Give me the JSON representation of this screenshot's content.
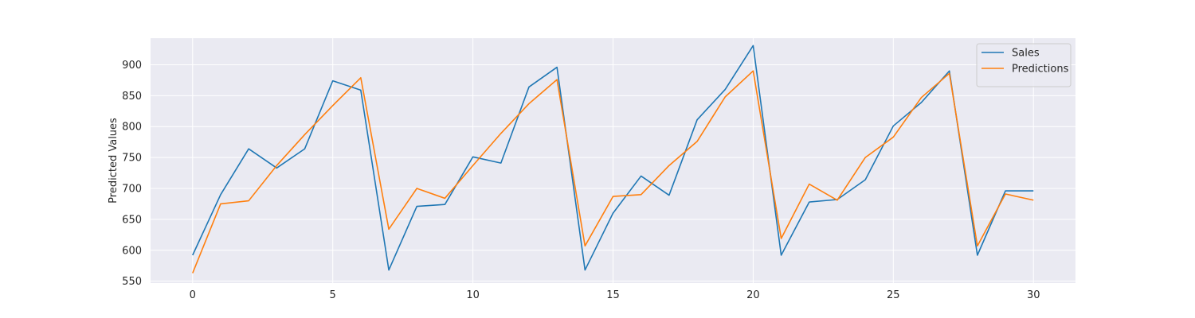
{
  "chart_data": {
    "type": "line",
    "title": "",
    "xlabel": "",
    "ylabel": "Predicted Values",
    "xlim": [
      -1.5,
      31.5
    ],
    "ylim": [
      547,
      943
    ],
    "xticks": [
      0,
      5,
      10,
      15,
      20,
      25,
      30
    ],
    "yticks": [
      550,
      600,
      650,
      700,
      750,
      800,
      850,
      900
    ],
    "grid": true,
    "legend_position": "top-right",
    "x": [
      0,
      1,
      2,
      3,
      4,
      5,
      6,
      7,
      8,
      9,
      10,
      11,
      12,
      13,
      14,
      15,
      16,
      17,
      18,
      19,
      20,
      21,
      22,
      23,
      24,
      25,
      26,
      27,
      28,
      29,
      30
    ],
    "series": [
      {
        "name": "Sales",
        "color": "#1f77b4",
        "values": [
          592,
          690,
          764,
          733,
          764,
          874,
          859,
          568,
          671,
          674,
          751,
          741,
          864,
          896,
          568,
          660,
          720,
          689,
          811,
          860,
          931,
          592,
          678,
          682,
          714,
          801,
          839,
          890,
          592,
          696,
          696
        ]
      },
      {
        "name": "Predictions",
        "color": "#ff7f0e",
        "values": [
          563,
          675,
          680,
          737,
          787,
          834,
          879,
          634,
          700,
          684,
          737,
          789,
          837,
          876,
          607,
          687,
          690,
          737,
          776,
          848,
          890,
          619,
          707,
          681,
          750,
          783,
          847,
          886,
          607,
          691,
          681
        ]
      }
    ]
  },
  "style": {
    "plot_background": "#eaeaf2",
    "grid_color": "#ffffff",
    "text_color": "#262626"
  }
}
